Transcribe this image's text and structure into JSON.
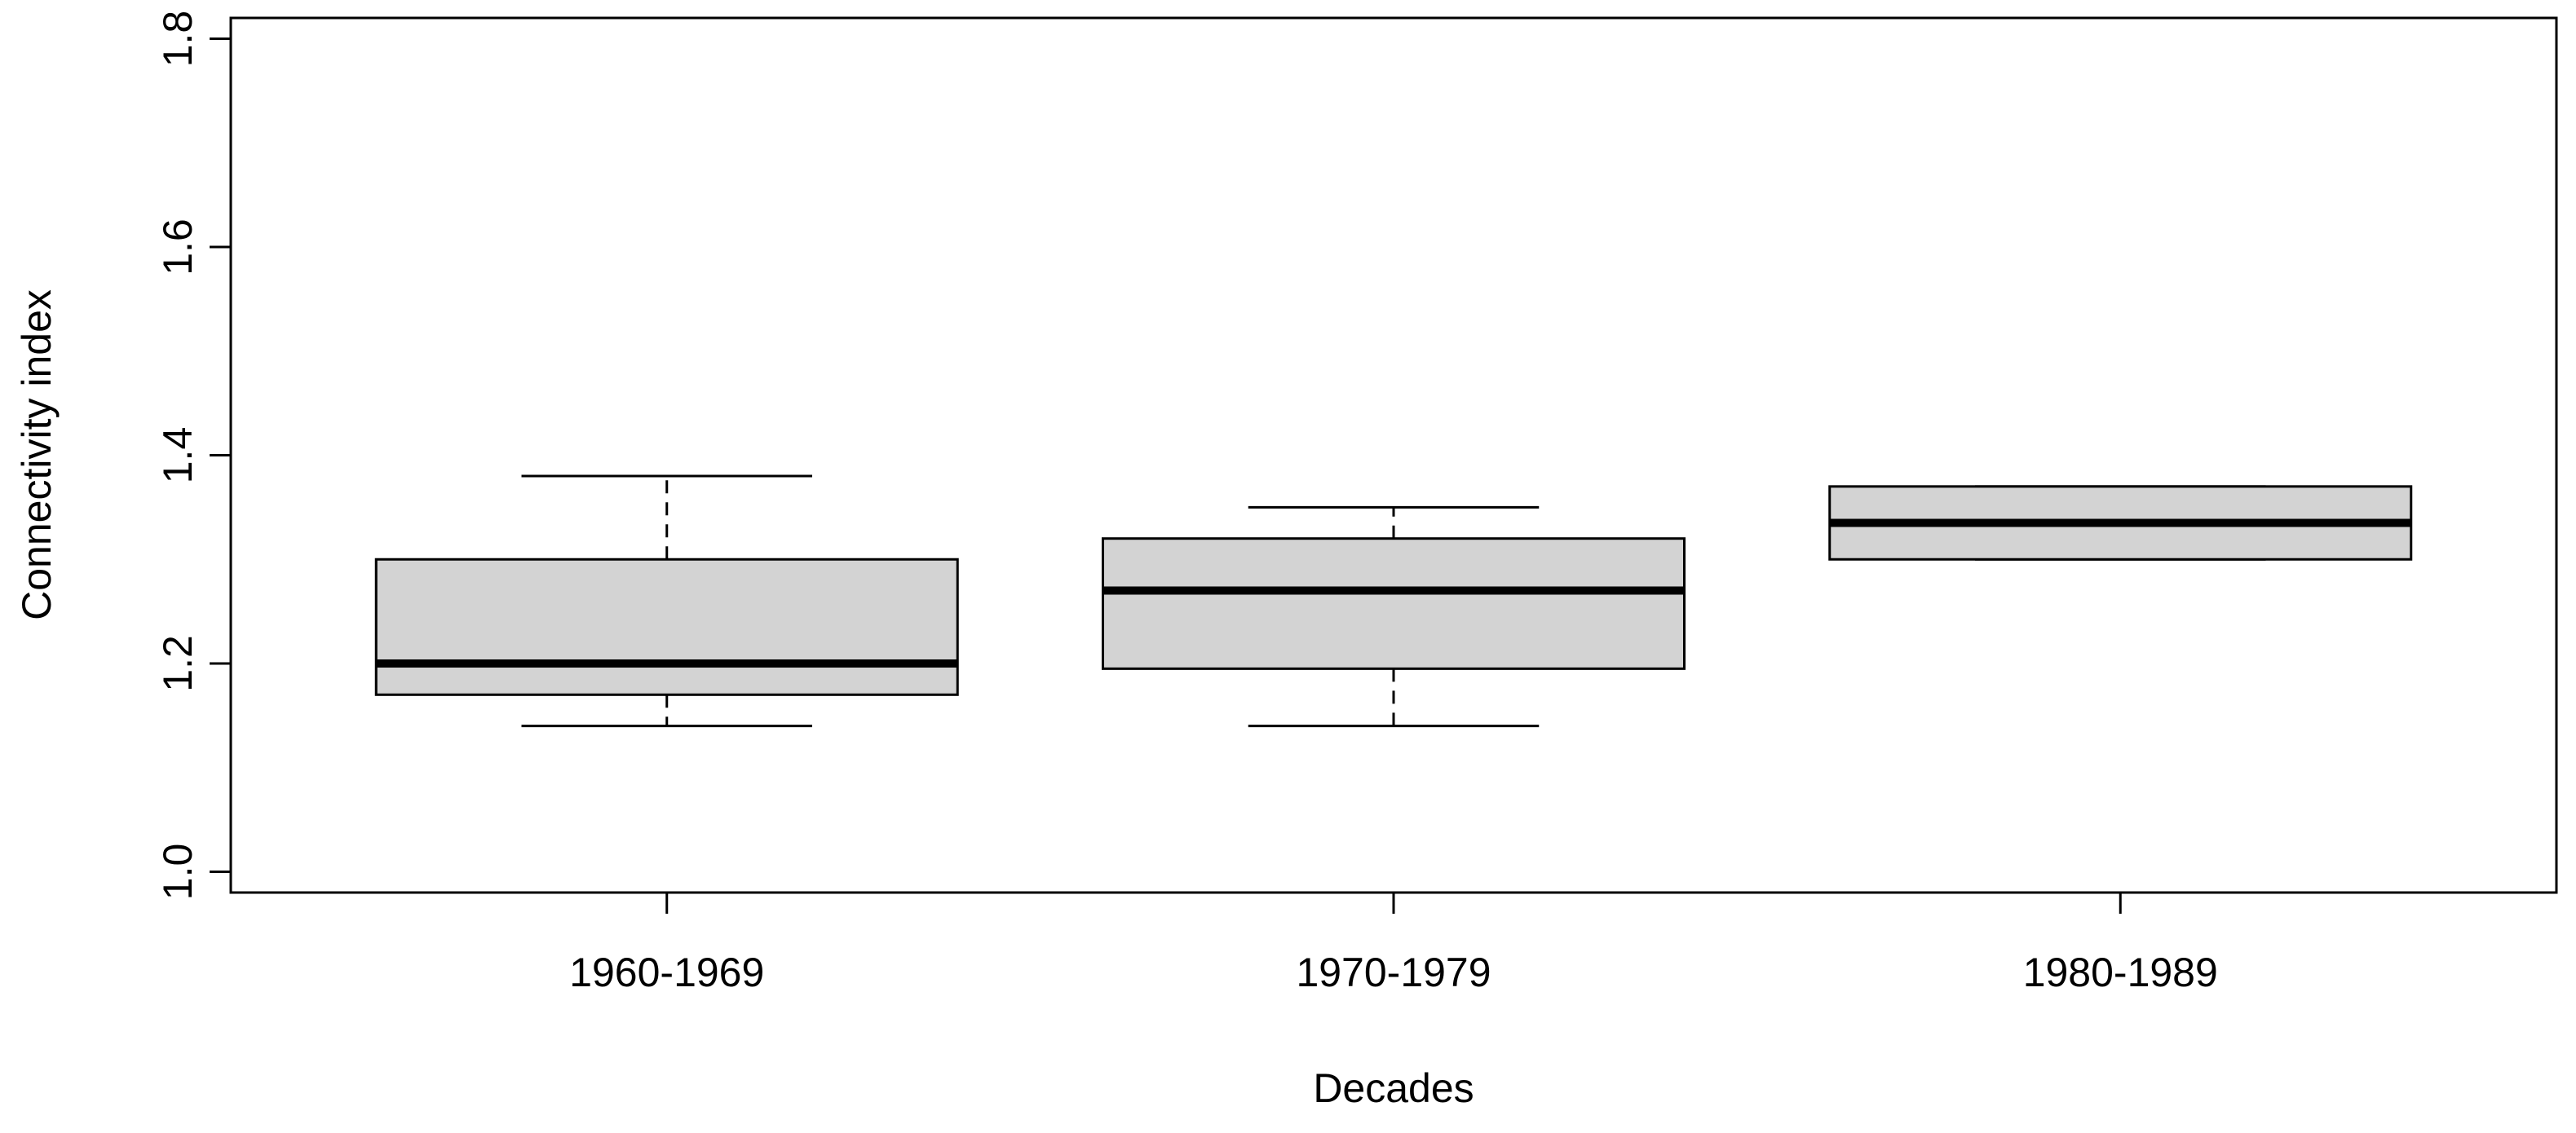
{
  "chart_data": {
    "type": "boxplot",
    "title": "",
    "xlabel": "Decades",
    "ylabel": "Connectivity index",
    "ylim": [
      0.98,
      1.82
    ],
    "yticks": [
      1.0,
      1.2,
      1.4,
      1.6,
      1.8
    ],
    "ytick_labels": [
      "1.0",
      "1.2",
      "1.4",
      "1.6",
      "1.8"
    ],
    "grid": false,
    "box_color": "#d3d3d3",
    "categories": [
      "1960-1969",
      "1970-1979",
      "1980-1989"
    ],
    "boxes": [
      {
        "category": "1960-1969",
        "min": 1.14,
        "q1": 1.17,
        "median": 1.2,
        "q3": 1.3,
        "max": 1.38
      },
      {
        "category": "1970-1979",
        "min": 1.14,
        "q1": 1.195,
        "median": 1.27,
        "q3": 1.32,
        "max": 1.35
      },
      {
        "category": "1980-1989",
        "min": 1.3,
        "q1": 1.3,
        "median": 1.335,
        "q3": 1.37,
        "max": 1.37
      }
    ]
  }
}
